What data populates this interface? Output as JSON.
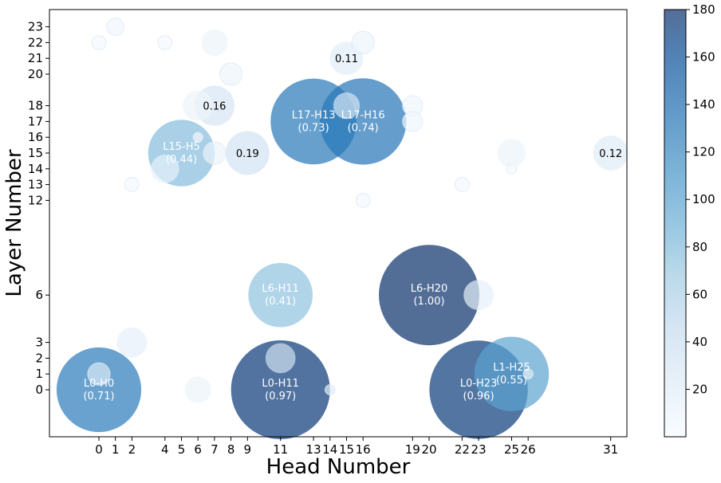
{
  "chart_data": {
    "type": "scatter",
    "xlabel": "Head Number",
    "ylabel": "Layer Number",
    "x_ticks": [
      0,
      1,
      2,
      4,
      5,
      6,
      7,
      8,
      9,
      11,
      13,
      14,
      15,
      16,
      19,
      20,
      22,
      23,
      25,
      26,
      31
    ],
    "y_ticks": [
      0,
      1,
      2,
      3,
      6,
      12,
      13,
      14,
      15,
      16,
      17,
      18,
      20,
      21,
      22,
      23
    ],
    "x_tick_labels": [
      "0",
      "1",
      "2",
      "4",
      "5",
      "6",
      "7",
      "8",
      "9",
      "11",
      "13",
      "14",
      "15",
      "16",
      "19",
      "20",
      "22",
      "23",
      "25",
      "26",
      "31"
    ],
    "y_tick_labels": [
      "0",
      "1",
      "2",
      "3",
      "6",
      "12",
      "13",
      "14",
      "15",
      "16",
      "17",
      "18",
      "20",
      "21",
      "22",
      "23"
    ],
    "colorbar": {
      "min": 0,
      "max": 180,
      "ticks": [
        20,
        40,
        60,
        80,
        100,
        120,
        140,
        160,
        180
      ]
    },
    "points": [
      {
        "head": 0,
        "layer": 0,
        "value": 128,
        "size": 0.71,
        "label": "L0-H0",
        "score": "(0.71)"
      },
      {
        "head": 11,
        "layer": 0,
        "value": 175,
        "size": 0.97,
        "label": "L0-H11",
        "score": "(0.97)"
      },
      {
        "head": 23,
        "layer": 0,
        "value": 173,
        "size": 0.96,
        "label": "L0-H23",
        "score": "(0.96)"
      },
      {
        "head": 20,
        "layer": 6,
        "value": 180,
        "size": 1.0,
        "label": "L6-H20",
        "score": "(1.00)"
      },
      {
        "head": 25,
        "layer": 1,
        "value": 99,
        "size": 0.55,
        "label": "L1-H25",
        "score": "(0.55)"
      },
      {
        "head": 11,
        "layer": 6,
        "value": 74,
        "size": 0.41,
        "label": "L6-H11",
        "score": "(0.41)"
      },
      {
        "head": 13,
        "layer": 17,
        "value": 131,
        "size": 0.73,
        "label": "L17-H13",
        "score": "(0.73)"
      },
      {
        "head": 16,
        "layer": 17,
        "value": 133,
        "size": 0.74,
        "label": "L17-H16",
        "score": "(0.74)"
      },
      {
        "head": 5,
        "layer": 15,
        "value": 79,
        "size": 0.44,
        "label": "L15-H5",
        "score": "(0.44)"
      },
      {
        "head": 15,
        "layer": 21,
        "value": 20,
        "size": 0.11,
        "label": "",
        "score": "0.11"
      },
      {
        "head": 7,
        "layer": 18,
        "value": 29,
        "size": 0.16,
        "label": "",
        "score": "0.16"
      },
      {
        "head": 9,
        "layer": 15,
        "value": 34,
        "size": 0.19,
        "label": "",
        "score": "0.19"
      },
      {
        "head": 31,
        "layer": 15,
        "value": 22,
        "size": 0.12,
        "label": "",
        "score": "0.12"
      },
      {
        "head": 2,
        "layer": 3,
        "value": 16,
        "size": 0.09,
        "label": "",
        "score": ""
      },
      {
        "head": 11,
        "layer": 2,
        "value": 36,
        "size": 0.09,
        "label": "",
        "score": ""
      },
      {
        "head": 0,
        "layer": 1,
        "value": 26,
        "size": 0.05,
        "label": "",
        "score": ""
      },
      {
        "head": 6,
        "layer": 0,
        "value": 10,
        "size": 0.07,
        "label": "",
        "score": ""
      },
      {
        "head": 23,
        "layer": 6,
        "value": 16,
        "size": 0.09,
        "label": "",
        "score": ""
      },
      {
        "head": 25,
        "layer": 15,
        "value": 10,
        "size": 0.08,
        "label": "",
        "score": ""
      },
      {
        "head": 15,
        "layer": 18,
        "value": 30,
        "size": 0.07,
        "label": "",
        "score": ""
      },
      {
        "head": 4,
        "layer": 14,
        "value": 14,
        "size": 0.08,
        "label": "",
        "score": ""
      },
      {
        "head": 6,
        "layer": 18,
        "value": 10,
        "size": 0.09,
        "label": "",
        "score": ""
      },
      {
        "head": 7,
        "layer": 22,
        "value": 10,
        "size": 0.07,
        "label": "",
        "score": ""
      },
      {
        "head": 16,
        "layer": 22,
        "value": 8,
        "size": 0.05,
        "label": "",
        "score": ""
      },
      {
        "head": 8,
        "layer": 20,
        "value": 8,
        "size": 0.05,
        "label": "",
        "score": ""
      },
      {
        "head": 7,
        "layer": 15,
        "value": 10,
        "size": 0.05,
        "label": "",
        "score": ""
      },
      {
        "head": 19,
        "layer": 18,
        "value": 6,
        "size": 0.04,
        "label": "",
        "score": ""
      },
      {
        "head": 19,
        "layer": 17,
        "value": 6,
        "size": 0.04,
        "label": "",
        "score": ""
      },
      {
        "head": 1,
        "layer": 23,
        "value": 5,
        "size": 0.03,
        "label": "",
        "score": ""
      },
      {
        "head": 0,
        "layer": 22,
        "value": 4,
        "size": 0.02,
        "label": "",
        "score": ""
      },
      {
        "head": 4,
        "layer": 22,
        "value": 4,
        "size": 0.02,
        "label": "",
        "score": ""
      },
      {
        "head": 2,
        "layer": 13,
        "value": 4,
        "size": 0.02,
        "label": "",
        "score": ""
      },
      {
        "head": 22,
        "layer": 13,
        "value": 4,
        "size": 0.02,
        "label": "",
        "score": ""
      },
      {
        "head": 16,
        "layer": 12,
        "value": 4,
        "size": 0.02,
        "label": "",
        "score": ""
      },
      {
        "head": 6,
        "layer": 16,
        "value": 4,
        "size": 0.01,
        "label": "",
        "score": ""
      },
      {
        "head": 25,
        "layer": 14,
        "value": 4,
        "size": 0.01,
        "label": "",
        "score": ""
      },
      {
        "head": 14,
        "layer": 0,
        "value": 20,
        "size": 0.01,
        "label": "",
        "score": ""
      },
      {
        "head": 26,
        "layer": 1,
        "value": 20,
        "size": 0.01,
        "label": "",
        "score": ""
      }
    ]
  }
}
